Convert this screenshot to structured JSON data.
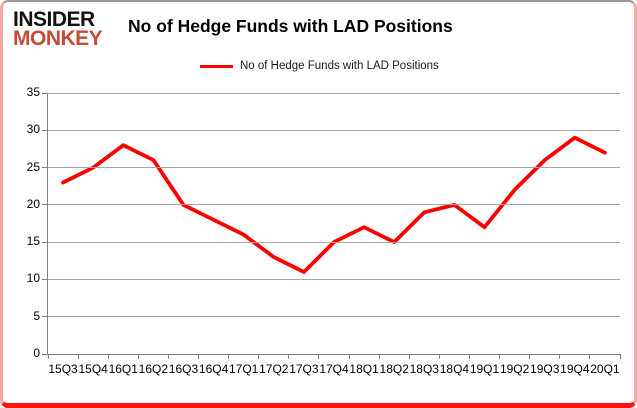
{
  "branding": {
    "logo_line1": "INSIDER",
    "logo_line2": "MONKEY"
  },
  "header": {
    "title": "No of Hedge Funds with LAD Positions"
  },
  "legend": {
    "label": "No of Hedge Funds with LAD Positions"
  },
  "colors": {
    "series_red": "#fe0000",
    "logo_black": "#121212",
    "logo_red": "#c64a35",
    "axis_gray": "#808080",
    "grid_gray": "#a6a6a6",
    "frame_top_gray": "#9b9b9b",
    "frame_side_pink": "#f2aaa4",
    "frame_bottom_red": "#fb1510"
  },
  "chart_data": {
    "type": "line",
    "title": "No of Hedge Funds with LAD Positions",
    "categories": [
      "15Q3",
      "15Q4",
      "16Q1",
      "16Q2",
      "16Q3",
      "16Q4",
      "17Q1",
      "17Q2",
      "17Q3",
      "17Q4",
      "18Q1",
      "18Q2",
      "18Q3",
      "18Q4",
      "19Q1",
      "19Q2",
      "19Q3",
      "19Q4",
      "20Q1"
    ],
    "series": [
      {
        "name": "No of Hedge Funds with LAD Positions",
        "color": "#fe0000",
        "values": [
          23,
          25,
          28,
          26,
          20,
          18,
          16,
          13,
          11,
          15,
          17,
          15,
          19,
          20,
          17,
          22,
          26,
          29,
          27
        ]
      }
    ],
    "xlabel": "",
    "ylabel": "",
    "ylim": [
      0,
      35
    ],
    "ytick_step": 5,
    "grid": "horizontal-only",
    "legend_position": "top-center"
  }
}
